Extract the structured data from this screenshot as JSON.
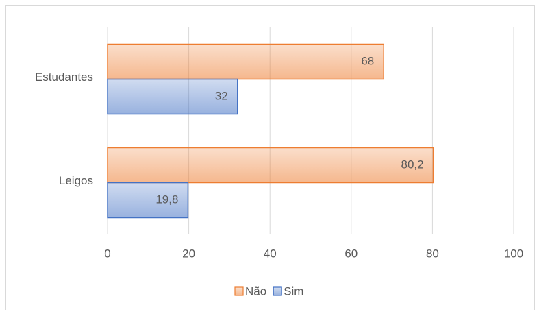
{
  "chart_data": {
    "type": "bar",
    "orientation": "horizontal",
    "categories": [
      "Estudantes",
      "Leigos"
    ],
    "series": [
      {
        "name": "Não",
        "color": "#ed7d31",
        "values": [
          68,
          80.2
        ],
        "value_labels": [
          "68",
          "80,2"
        ]
      },
      {
        "name": "Sim",
        "color": "#4472c4",
        "values": [
          32,
          19.8
        ],
        "value_labels": [
          "32",
          "19,8"
        ]
      }
    ],
    "xlim": [
      0,
      100
    ],
    "xticks": [
      0,
      20,
      40,
      60,
      80,
      100
    ],
    "grid": true,
    "legend": "bottom"
  }
}
